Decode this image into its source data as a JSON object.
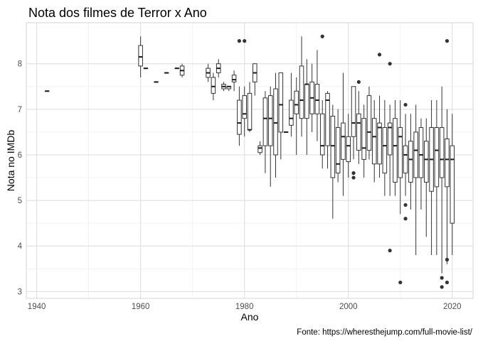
{
  "chart_data": {
    "type": "boxplot",
    "title": "Nota dos filmes de Terror x Ano",
    "xlabel": "Ano",
    "ylabel": "Nota no IMDb",
    "caption": "Fonte: https://wheresthejump.com/full-movie-list/",
    "xlim": [
      1938,
      2024
    ],
    "ylim": [
      2.85,
      8.9
    ],
    "x_ticks": [
      1940,
      1960,
      1980,
      2000,
      2020
    ],
    "y_ticks": [
      3,
      4,
      5,
      6,
      7,
      8
    ],
    "grid": true,
    "boxes": [
      {
        "x": 1942,
        "min": 7.4,
        "q1": 7.4,
        "median": 7.4,
        "q3": 7.4,
        "max": 7.4,
        "outliers": []
      },
      {
        "x": 1960,
        "min": 7.7,
        "q1": 7.95,
        "median": 8.15,
        "q3": 8.4,
        "max": 8.6,
        "outliers": []
      },
      {
        "x": 1961,
        "min": 7.9,
        "q1": 7.9,
        "median": 7.9,
        "q3": 7.9,
        "max": 7.9,
        "outliers": []
      },
      {
        "x": 1963,
        "min": 7.6,
        "q1": 7.6,
        "median": 7.6,
        "q3": 7.6,
        "max": 7.6,
        "outliers": []
      },
      {
        "x": 1965,
        "min": 7.8,
        "q1": 7.8,
        "median": 7.8,
        "q3": 7.8,
        "max": 7.8,
        "outliers": []
      },
      {
        "x": 1967,
        "min": 7.9,
        "q1": 7.9,
        "median": 7.9,
        "q3": 7.9,
        "max": 7.9,
        "outliers": []
      },
      {
        "x": 1968,
        "min": 7.7,
        "q1": 7.75,
        "median": 7.85,
        "q3": 7.95,
        "max": 8.0,
        "outliers": []
      },
      {
        "x": 1973,
        "min": 7.6,
        "q1": 7.7,
        "median": 7.8,
        "q3": 7.9,
        "max": 8.0,
        "outliers": []
      },
      {
        "x": 1974,
        "min": 7.2,
        "q1": 7.35,
        "median": 7.5,
        "q3": 7.7,
        "max": 7.8,
        "outliers": []
      },
      {
        "x": 1975,
        "min": 7.7,
        "q1": 7.8,
        "median": 7.9,
        "q3": 8.0,
        "max": 8.1,
        "outliers": []
      },
      {
        "x": 1976,
        "min": 7.4,
        "q1": 7.45,
        "median": 7.5,
        "q3": 7.55,
        "max": 7.6,
        "outliers": []
      },
      {
        "x": 1977,
        "min": 7.4,
        "q1": 7.45,
        "median": 7.5,
        "q3": 7.5,
        "max": 7.5,
        "outliers": []
      },
      {
        "x": 1978,
        "min": 7.4,
        "q1": 7.6,
        "median": 7.65,
        "q3": 7.75,
        "max": 7.85,
        "outliers": []
      },
      {
        "x": 1979,
        "min": 6.2,
        "q1": 6.45,
        "median": 6.7,
        "q3": 7.2,
        "max": 7.5,
        "outliers": [
          8.5
        ]
      },
      {
        "x": 1980,
        "min": 6.4,
        "q1": 6.8,
        "median": 6.9,
        "q3": 7.3,
        "max": 7.5,
        "outliers": [
          8.5
        ]
      },
      {
        "x": 1981,
        "min": 6.5,
        "q1": 6.55,
        "median": 6.55,
        "q3": 7.35,
        "max": 7.6,
        "outliers": []
      },
      {
        "x": 1982,
        "min": 7.3,
        "q1": 7.6,
        "median": 7.8,
        "q3": 8.0,
        "max": 8.0,
        "outliers": []
      },
      {
        "x": 1983,
        "min": 6.0,
        "q1": 6.05,
        "median": 6.15,
        "q3": 6.2,
        "max": 6.3,
        "outliers": []
      },
      {
        "x": 1984,
        "min": 5.6,
        "q1": 6.2,
        "median": 6.8,
        "q3": 7.25,
        "max": 7.4,
        "outliers": []
      },
      {
        "x": 1985,
        "min": 5.3,
        "q1": 6.2,
        "median": 6.8,
        "q3": 7.3,
        "max": 7.5,
        "outliers": []
      },
      {
        "x": 1986,
        "min": 5.5,
        "q1": 6.0,
        "median": 6.7,
        "q3": 7.45,
        "max": 7.8,
        "outliers": []
      },
      {
        "x": 1987,
        "min": 5.9,
        "q1": 6.5,
        "median": 7.1,
        "q3": 7.8,
        "max": 7.8,
        "outliers": []
      },
      {
        "x": 1988,
        "min": 6.5,
        "q1": 6.5,
        "median": 6.5,
        "q3": 6.5,
        "max": 6.5,
        "outliers": []
      },
      {
        "x": 1989,
        "min": 6.4,
        "q1": 6.65,
        "median": 6.8,
        "q3": 7.2,
        "max": 7.8,
        "outliers": []
      },
      {
        "x": 1990,
        "min": 6.0,
        "q1": 6.9,
        "median": 7.1,
        "q3": 7.4,
        "max": 7.7,
        "outliers": []
      },
      {
        "x": 1991,
        "min": 6.4,
        "q1": 6.8,
        "median": 7.2,
        "q3": 7.95,
        "max": 8.6,
        "outliers": []
      },
      {
        "x": 1992,
        "min": 6.0,
        "q1": 6.8,
        "median": 7.55,
        "q3": 7.55,
        "max": 8.1,
        "outliers": []
      },
      {
        "x": 1993,
        "min": 6.5,
        "q1": 6.9,
        "median": 7.25,
        "q3": 7.6,
        "max": 8.0,
        "outliers": []
      },
      {
        "x": 1994,
        "min": 6.3,
        "q1": 6.9,
        "median": 7.2,
        "q3": 7.55,
        "max": 8.3,
        "outliers": []
      },
      {
        "x": 1995,
        "min": 5.7,
        "q1": 6.0,
        "median": 6.2,
        "q3": 6.9,
        "max": 7.2,
        "outliers": [
          8.6
        ]
      },
      {
        "x": 1996,
        "min": 5.7,
        "q1": 6.2,
        "median": 7.2,
        "q3": 7.35,
        "max": 7.4,
        "outliers": []
      },
      {
        "x": 1997,
        "min": 4.6,
        "q1": 5.5,
        "median": 6.2,
        "q3": 6.85,
        "max": 7.1,
        "outliers": []
      },
      {
        "x": 1998,
        "min": 5.4,
        "q1": 5.6,
        "median": 5.8,
        "q3": 6.6,
        "max": 7.0,
        "outliers": []
      },
      {
        "x": 1999,
        "min": 5.1,
        "q1": 5.9,
        "median": 6.4,
        "q3": 6.7,
        "max": 7.8,
        "outliers": []
      },
      {
        "x": 2000,
        "min": 5.5,
        "q1": 5.85,
        "median": 6.2,
        "q3": 6.4,
        "max": 6.9,
        "outliers": []
      },
      {
        "x": 2001,
        "min": 5.9,
        "q1": 6.4,
        "median": 6.7,
        "q3": 7.5,
        "max": 7.5,
        "outliers": [
          5.5,
          5.6
        ]
      },
      {
        "x": 2002,
        "min": 5.8,
        "q1": 6.1,
        "median": 6.7,
        "q3": 6.9,
        "max": 7.4,
        "outliers": [
          7.6
        ]
      },
      {
        "x": 2003,
        "min": 5.5,
        "q1": 5.9,
        "median": 6.15,
        "q3": 6.8,
        "max": 7.1,
        "outliers": []
      },
      {
        "x": 2004,
        "min": 5.9,
        "q1": 6.1,
        "median": 6.5,
        "q3": 7.3,
        "max": 7.5,
        "outliers": []
      },
      {
        "x": 2005,
        "min": 5.4,
        "q1": 5.8,
        "median": 6.4,
        "q3": 6.8,
        "max": 7.2,
        "outliers": []
      },
      {
        "x": 2006,
        "min": 5.5,
        "q1": 5.8,
        "median": 6.6,
        "q3": 6.7,
        "max": 7.3,
        "outliers": [
          8.2
        ]
      },
      {
        "x": 2007,
        "min": 5.1,
        "q1": 5.6,
        "median": 6.2,
        "q3": 6.6,
        "max": 7.2,
        "outliers": []
      },
      {
        "x": 2008,
        "min": 5.1,
        "q1": 6.0,
        "median": 6.6,
        "q3": 6.7,
        "max": 7.1,
        "outliers": [
          3.9,
          8.0
        ]
      },
      {
        "x": 2009,
        "min": 5.1,
        "q1": 5.4,
        "median": 6.2,
        "q3": 6.8,
        "max": 7.2,
        "outliers": []
      },
      {
        "x": 2010,
        "min": 4.7,
        "q1": 5.5,
        "median": 6.4,
        "q3": 6.6,
        "max": 7.2,
        "outliers": [
          3.2
        ]
      },
      {
        "x": 2011,
        "min": 5.1,
        "q1": 5.6,
        "median": 6.0,
        "q3": 6.2,
        "max": 6.9,
        "outliers": [
          4.6,
          4.9,
          7.1
        ]
      },
      {
        "x": 2012,
        "min": 4.8,
        "q1": 5.4,
        "median": 5.9,
        "q3": 6.3,
        "max": 6.9,
        "outliers": []
      },
      {
        "x": 2013,
        "min": 3.8,
        "q1": 5.5,
        "median": 6.1,
        "q3": 6.5,
        "max": 7.1,
        "outliers": []
      },
      {
        "x": 2014,
        "min": 4.8,
        "q1": 5.5,
        "median": 6.0,
        "q3": 6.6,
        "max": 6.8,
        "outliers": []
      },
      {
        "x": 2015,
        "min": 4.2,
        "q1": 5.4,
        "median": 5.9,
        "q3": 6.3,
        "max": 6.8,
        "outliers": []
      },
      {
        "x": 2016,
        "min": 3.8,
        "q1": 5.2,
        "median": 5.9,
        "q3": 6.6,
        "max": 7.2,
        "outliers": []
      },
      {
        "x": 2017,
        "min": 3.8,
        "q1": 5.3,
        "median": 6.1,
        "q3": 6.6,
        "max": 7.2,
        "outliers": []
      },
      {
        "x": 2018,
        "min": 3.4,
        "q1": 5.5,
        "median": 5.9,
        "q3": 6.6,
        "max": 7.5,
        "outliers": [
          3.1,
          3.3
        ]
      },
      {
        "x": 2019,
        "min": 3.6,
        "q1": 5.3,
        "median": 5.9,
        "q3": 6.35,
        "max": 7.0,
        "outliers": [
          3.2,
          3.7,
          8.5
        ]
      },
      {
        "x": 2020,
        "min": 3.8,
        "q1": 4.5,
        "median": 5.9,
        "q3": 6.2,
        "max": 6.9,
        "outliers": []
      }
    ]
  }
}
